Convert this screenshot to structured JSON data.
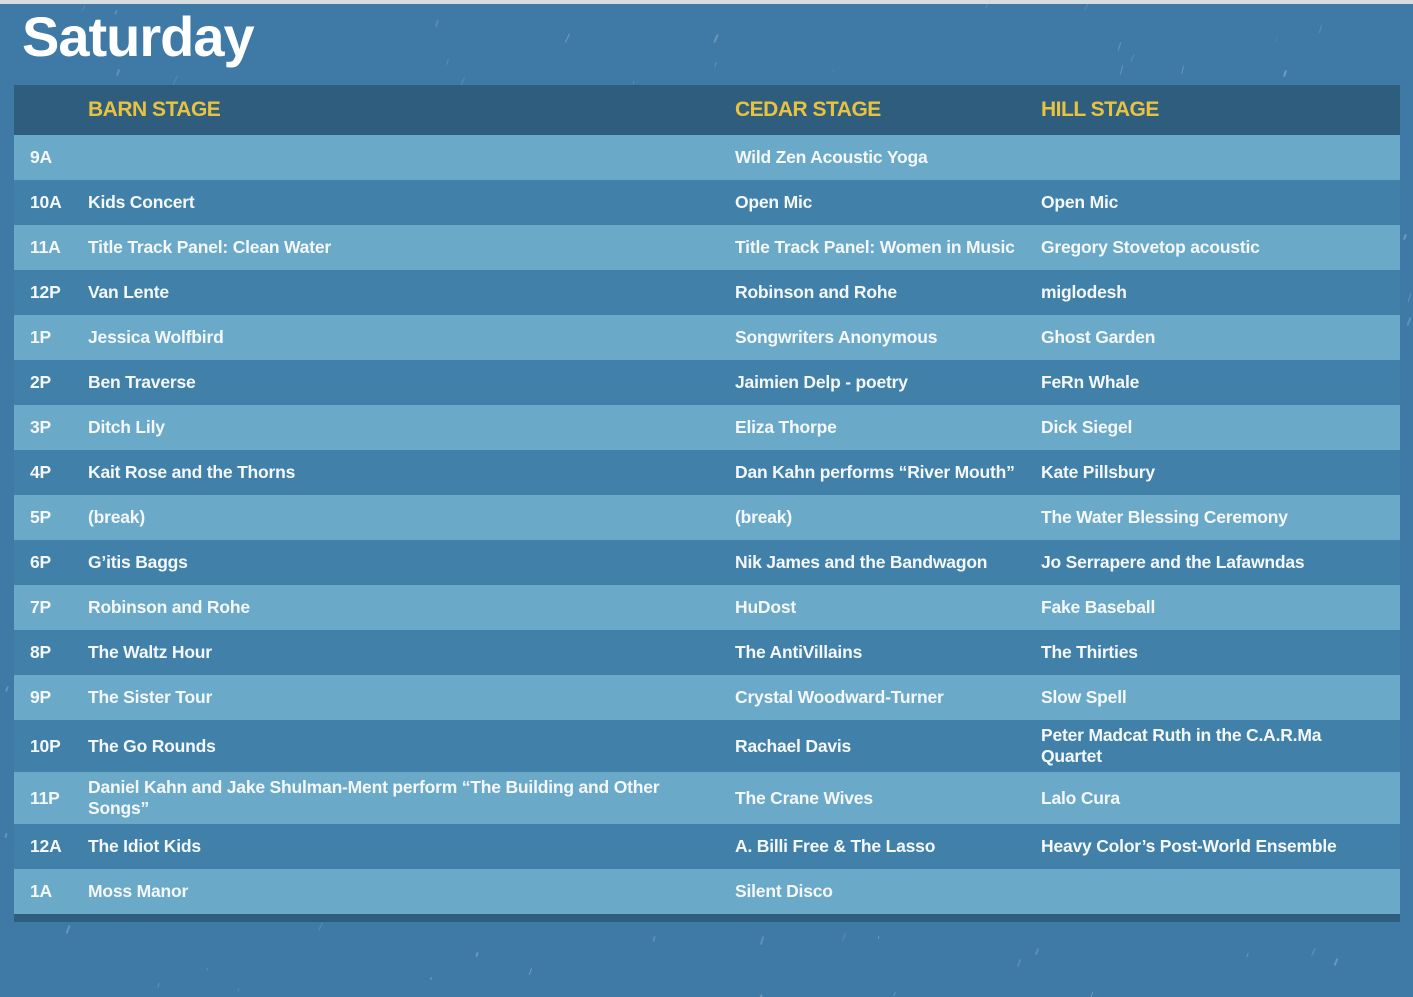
{
  "page_title": "Saturday",
  "table": {
    "columns": {
      "time_label": "",
      "barn_label": "BARN STAGE",
      "cedar_label": "CEDAR STAGE",
      "hill_label": "HILL STAGE"
    },
    "rows": [
      {
        "time": "9A",
        "barn": "",
        "cedar": "Wild Zen Acoustic Yoga",
        "hill": ""
      },
      {
        "time": "10A",
        "barn": "Kids Concert",
        "cedar": "Open Mic",
        "hill": "Open Mic"
      },
      {
        "time": "11A",
        "barn": "Title Track Panel: Clean Water",
        "cedar": "Title Track Panel: Women in Music",
        "hill": "Gregory Stovetop acoustic"
      },
      {
        "time": "12P",
        "barn": "Van Lente",
        "cedar": "Robinson and Rohe",
        "hill": "miglodesh"
      },
      {
        "time": "1P",
        "barn": "Jessica Wolfbird",
        "cedar": "Songwriters Anonymous",
        "hill": "Ghost Garden"
      },
      {
        "time": "2P",
        "barn": "Ben Traverse",
        "cedar": "Jaimien Delp - poetry",
        "hill": "FeRn Whale"
      },
      {
        "time": "3P",
        "barn": "Ditch Lily",
        "cedar": "Eliza Thorpe",
        "hill": "Dick Siegel"
      },
      {
        "time": "4P",
        "barn": "Kait Rose and the Thorns",
        "cedar": "Dan Kahn performs “River Mouth”",
        "hill": "Kate Pillsbury"
      },
      {
        "time": "5P",
        "barn": "(break)",
        "cedar": "(break)",
        "hill": "The Water Blessing Ceremony"
      },
      {
        "time": "6P",
        "barn": "G’itis Baggs",
        "cedar": "Nik James and the Bandwagon",
        "hill": "Jo Serrapere and the Lafawndas"
      },
      {
        "time": "7P",
        "barn": "Robinson and Rohe",
        "cedar": "HuDost",
        "hill": "Fake Baseball"
      },
      {
        "time": "8P",
        "barn": "The Waltz Hour",
        "cedar": "The AntiVillains",
        "hill": "The Thirties"
      },
      {
        "time": "9P",
        "barn": "The Sister Tour",
        "cedar": "Crystal Woodward-Turner",
        "hill": "Slow Spell"
      },
      {
        "time": "10P",
        "barn": "The Go Rounds",
        "cedar": "Rachael Davis",
        "hill": "Peter Madcat Ruth in the C.A.R.Ma Quartet"
      },
      {
        "time": "11P",
        "barn": "Daniel Kahn and Jake Shulman-Ment perform “The Building and Other Songs”",
        "cedar": "The Crane Wives",
        "hill": "Lalo Cura"
      },
      {
        "time": "12A",
        "barn": "The Idiot Kids",
        "cedar": "A. Billi Free & The Lasso",
        "hill": "Heavy Color’s Post-World Ensemble"
      },
      {
        "time": "1A",
        "barn": "Moss Manor",
        "cedar": "Silent Disco",
        "hill": ""
      }
    ]
  },
  "colors": {
    "background": "#3f7aa6",
    "header_row": "#2f5d7d",
    "row_dark": "#4181a9",
    "row_light": "#6ba9c9",
    "stage_accent_yellow": "#e9c33e",
    "text": "#f4f8fa"
  }
}
